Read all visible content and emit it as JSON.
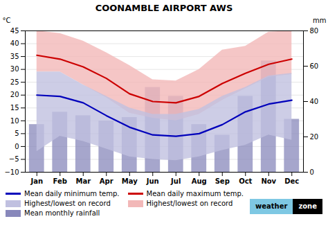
{
  "chart_data": {
    "type": "line",
    "title": "COONAMBLE AIRPORT AWS",
    "categories": [
      "Jan",
      "Feb",
      "Mar",
      "Apr",
      "May",
      "Jun",
      "Jul",
      "Aug",
      "Sep",
      "Oct",
      "Nov",
      "Dec"
    ],
    "ylabel": "°C",
    "y2label": "mm",
    "ylim": [
      -10,
      45
    ],
    "yticks": [
      -10,
      -5,
      0,
      5,
      10,
      15,
      20,
      25,
      30,
      35,
      40,
      45
    ],
    "y2lim": [
      0,
      80
    ],
    "y2ticks": [
      0,
      20,
      40,
      60,
      80
    ],
    "grid": true,
    "legend": "bottom",
    "annotations": [
      "weather",
      "zone"
    ],
    "series": [
      {
        "name": "Mean daily minimum temp.",
        "type": "line",
        "color": "#0000bb",
        "values": [
          20.0,
          19.5,
          17.0,
          12.0,
          7.5,
          4.5,
          4.0,
          5.0,
          8.5,
          13.5,
          16.5,
          18.0
        ]
      },
      {
        "name": "Mean daily maximum temp.",
        "type": "line",
        "color": "#cc0000",
        "values": [
          35.5,
          34.0,
          31.0,
          26.5,
          20.5,
          17.5,
          17.0,
          19.5,
          24.5,
          28.5,
          32.0,
          34.0
        ]
      },
      {
        "name": "Highest/lowest on record",
        "type": "area",
        "color": "#c0c0e0",
        "high": [
          29.0,
          29.0,
          24.0,
          19.5,
          15.0,
          12.5,
          12.5,
          14.5,
          19.5,
          23.0,
          27.5,
          28.5
        ],
        "low": [
          -2.0,
          4.0,
          2.0,
          -1.0,
          -4.0,
          -5.0,
          -5.5,
          -4.0,
          -1.5,
          0.5,
          4.5,
          2.5
        ]
      },
      {
        "name": "Highest/lowest on record",
        "type": "area",
        "color": "#f2b8b8",
        "high": [
          45.0,
          44.0,
          41.0,
          36.5,
          31.5,
          26.0,
          25.5,
          30.0,
          37.5,
          39.0,
          44.5,
          45.0
        ],
        "low": [
          29.0,
          29.0,
          24.0,
          19.0,
          13.0,
          11.0,
          10.0,
          12.5,
          18.0,
          22.5,
          27.0,
          28.0
        ]
      },
      {
        "name": "Mean monthly rainfall",
        "type": "bar",
        "color": "#8888bb",
        "axis": "y2",
        "values": [
          27.0,
          34.0,
          32.0,
          29.0,
          31.0,
          48.0,
          43.0,
          27.0,
          21.0,
          43.0,
          63.0,
          30.0
        ]
      }
    ]
  }
}
